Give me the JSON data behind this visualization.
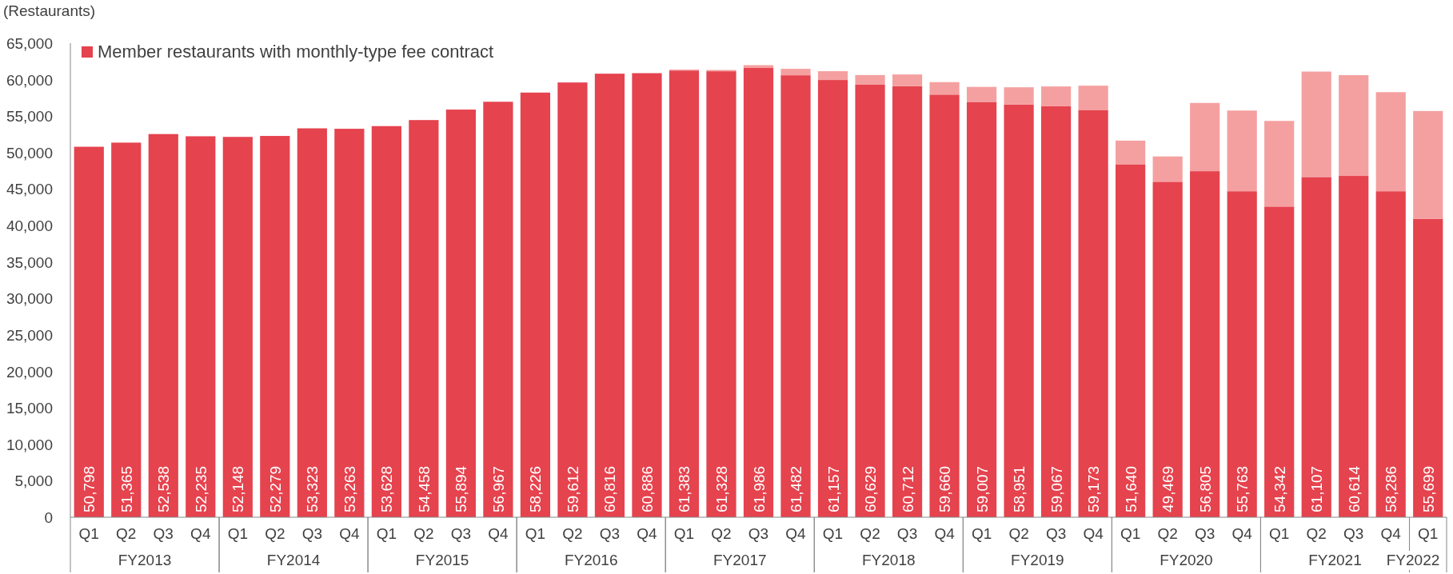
{
  "chart_data": {
    "type": "bar",
    "stacked": true,
    "ylabel": "(Restaurants)",
    "legend": "top left",
    "categories": [
      "Q1",
      "Q2",
      "Q3",
      "Q4",
      "Q1",
      "Q2",
      "Q3",
      "Q4",
      "Q1",
      "Q2",
      "Q3",
      "Q4",
      "Q1",
      "Q2",
      "Q3",
      "Q4",
      "Q1",
      "Q2",
      "Q3",
      "Q4",
      "Q1",
      "Q2",
      "Q3",
      "Q4",
      "Q1",
      "Q2",
      "Q3",
      "Q4",
      "Q1",
      "Q2",
      "Q3",
      "Q4",
      "Q1",
      "Q2",
      "Q3",
      "Q4",
      "Q1"
    ],
    "annotations": [
      "FY2013",
      "FY2014",
      "FY2015",
      "FY2016",
      "FY2017",
      "FY2018",
      "FY2019",
      "FY2020",
      "FY2021",
      "FY2022"
    ],
    "series": [
      {
        "name": "Member restaurants with monthly-type fee contract",
        "color": "#e5434e",
        "values": [
          50798,
          51365,
          52538,
          52235,
          52148,
          52279,
          53323,
          53263,
          53628,
          54458,
          55894,
          56967,
          58226,
          59612,
          60816,
          60886,
          61250,
          61150,
          61600,
          60600,
          59950,
          59300,
          59100,
          57950,
          56950,
          56600,
          56350,
          55850,
          48400,
          46000,
          47450,
          44700,
          42600,
          46650,
          46800,
          44700,
          40900
        ]
      },
      {
        "color": "#f5a0a0",
        "values": [
          null,
          null,
          null,
          null,
          null,
          null,
          null,
          null,
          null,
          null,
          null,
          null,
          null,
          null,
          null,
          null,
          133,
          178,
          386,
          882,
          1207,
          1329,
          1612,
          1710,
          2057,
          2351,
          2717,
          3323,
          3240,
          3469,
          9355,
          11063,
          11742,
          14457,
          13814,
          13586,
          14799
        ]
      }
    ],
    "totals": [
      "50,798",
      "51,365",
      "52,538",
      "52,235",
      "52,148",
      "52,279",
      "53,323",
      "53,263",
      "53,628",
      "54,458",
      "55,894",
      "56,967",
      "58,226",
      "59,612",
      "60,816",
      "60,886",
      "61,383",
      "61,328",
      "61,986",
      "61,482",
      "61,157",
      "60,629",
      "60,712",
      "59,660",
      "59,007",
      "58,951",
      "59,067",
      "59,173",
      "51,640",
      "49,469",
      "56,805",
      "55,763",
      "54,342",
      "61,107",
      "60,614",
      "58,286",
      "55,699"
    ],
    "ylim": [
      0,
      65000
    ],
    "yticks": [
      0,
      {
        "value": 5000,
        "label": "5,000"
      },
      {
        "value": 10000,
        "label": "10,000"
      },
      {
        "value": 15000,
        "label": "15,000"
      },
      {
        "value": 20000,
        "label": "20,000"
      },
      {
        "value": 25000,
        "label": "25,000"
      },
      {
        "value": 30000,
        "label": "30,000"
      },
      {
        "value": 35000,
        "label": "35,000"
      },
      {
        "value": 40000,
        "label": "40,000"
      },
      {
        "value": 45000,
        "label": "45,000"
      },
      {
        "value": 50000,
        "label": "50,000"
      },
      {
        "value": 55000,
        "label": "55,000"
      },
      {
        "value": 60000,
        "label": "60,000"
      },
      {
        "value": 65000,
        "label": "65,000"
      }
    ]
  }
}
